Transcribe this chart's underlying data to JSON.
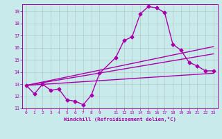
{
  "xlabel": "Windchill (Refroidissement éolien,°C)",
  "background_color": "#c8eaea",
  "line_color": "#aa00aa",
  "xlim": [
    -0.5,
    23.5
  ],
  "ylim": [
    11.0,
    19.6
  ],
  "yticks": [
    11,
    12,
    13,
    14,
    15,
    16,
    17,
    18,
    19
  ],
  "xticks": [
    0,
    1,
    2,
    3,
    4,
    5,
    6,
    7,
    8,
    9,
    11,
    12,
    13,
    14,
    15,
    16,
    17,
    18,
    19,
    20,
    21,
    22,
    23
  ],
  "series": {
    "line1_x": [
      0,
      1,
      2,
      3,
      4,
      5,
      6,
      7,
      8,
      9,
      11,
      12,
      13,
      14,
      15,
      16,
      17,
      18,
      19,
      20,
      21,
      22,
      23
    ],
    "line1_y": [
      12.9,
      12.2,
      13.0,
      12.5,
      12.6,
      11.7,
      11.6,
      11.3,
      12.1,
      13.9,
      15.2,
      16.6,
      16.9,
      18.8,
      19.4,
      19.3,
      18.9,
      16.3,
      15.8,
      14.8,
      14.5,
      14.1,
      14.1
    ],
    "line2_x": [
      0,
      23
    ],
    "line2_y": [
      12.9,
      16.1
    ],
    "line3_x": [
      0,
      23
    ],
    "line3_y": [
      12.9,
      15.5
    ],
    "line4_x": [
      0,
      23
    ],
    "line4_y": [
      12.9,
      13.9
    ]
  },
  "grid_color": "#999999",
  "marker": "D",
  "markersize": 2.5,
  "linewidth": 1.0
}
